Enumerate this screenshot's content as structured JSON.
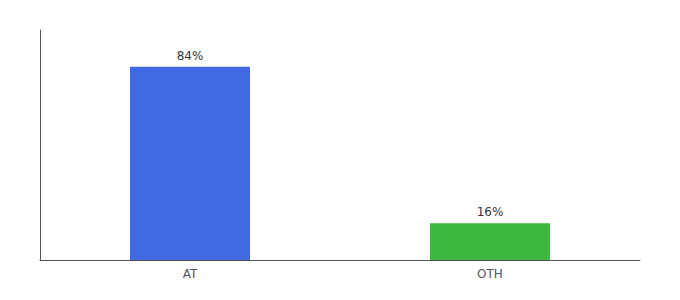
{
  "chart_data": {
    "type": "bar",
    "categories": [
      "AT",
      "OTH"
    ],
    "values": [
      84,
      16
    ],
    "colors": [
      "#4169e1",
      "#3cb83c"
    ],
    "value_labels": [
      "84%",
      "16%"
    ],
    "data_labels": true,
    "ylim": [
      0,
      100
    ],
    "grid": false,
    "tick_labels": "x"
  }
}
